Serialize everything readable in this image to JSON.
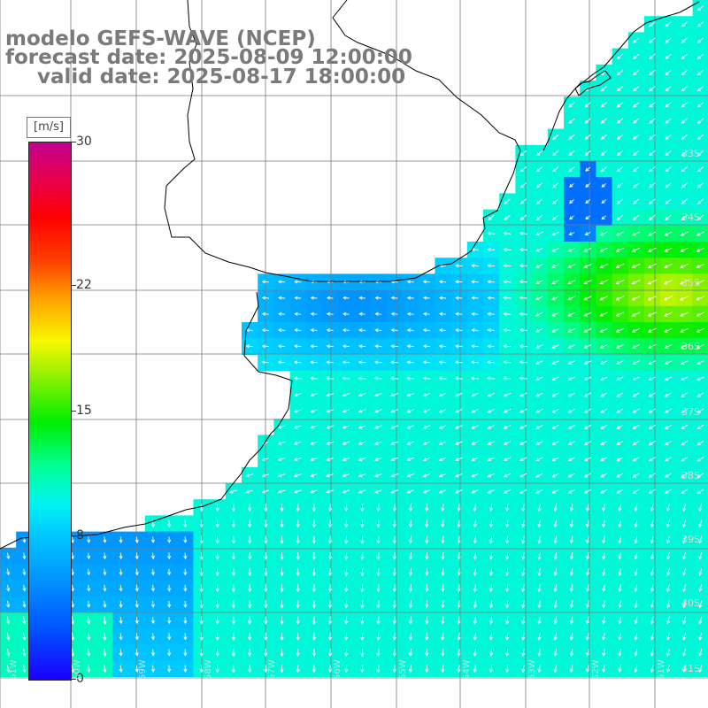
{
  "title": {
    "line1": "modelo GEFS-WAVE (NCEP)",
    "line2": "forecast date: 2025-08-09 12:00:00",
    "line3": "valid date: 2025-08-17 18:00:00"
  },
  "colorbar": {
    "unit_label": "[m/s]",
    "min": 0,
    "max": 30,
    "ticks": [
      {
        "value": 0,
        "label": "0"
      },
      {
        "value": 8,
        "label": "8"
      },
      {
        "value": 15,
        "label": "15"
      },
      {
        "value": 22,
        "label": "22"
      },
      {
        "value": 30,
        "label": "30"
      }
    ],
    "colors": [
      "#1a00ff",
      "#0090ff",
      "#00f5f0",
      "#00ee00",
      "#f8f800",
      "#ff0000",
      "#c20090"
    ]
  },
  "map": {
    "background": "#ffffff",
    "land_color": "#ffffff",
    "coastline_color": "#000000",
    "grid_color": "#7a7a7a",
    "arrow_color": "#ffffff",
    "field_variable": "wind speed and direction",
    "lat_labels": [
      "33S",
      "34S",
      "35S",
      "36S",
      "37S",
      "38S",
      "39S",
      "40S",
      "41S"
    ],
    "lon_labels": [
      "61W",
      "60W",
      "59W",
      "58W",
      "57W",
      "56W",
      "55W",
      "54W",
      "53W",
      "52W",
      "51W"
    ]
  }
}
